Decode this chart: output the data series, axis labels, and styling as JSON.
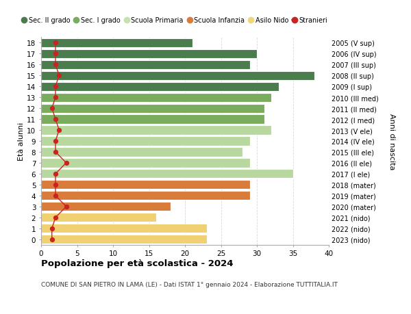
{
  "ages": [
    18,
    17,
    16,
    15,
    14,
    13,
    12,
    11,
    10,
    9,
    8,
    7,
    6,
    5,
    4,
    3,
    2,
    1,
    0
  ],
  "right_labels": [
    "2005 (V sup)",
    "2006 (IV sup)",
    "2007 (III sup)",
    "2008 (II sup)",
    "2009 (I sup)",
    "2010 (III med)",
    "2011 (II med)",
    "2012 (I med)",
    "2013 (V ele)",
    "2014 (IV ele)",
    "2015 (III ele)",
    "2016 (II ele)",
    "2017 (I ele)",
    "2018 (mater)",
    "2019 (mater)",
    "2020 (mater)",
    "2021 (nido)",
    "2022 (nido)",
    "2023 (nido)"
  ],
  "bar_values": [
    21,
    30,
    29,
    38,
    33,
    32,
    31,
    31,
    32,
    29,
    28,
    29,
    35,
    29,
    29,
    18,
    16,
    23,
    23
  ],
  "bar_colors": [
    "#4a7c4e",
    "#4a7c4e",
    "#4a7c4e",
    "#4a7c4e",
    "#4a7c4e",
    "#7aac5e",
    "#7aac5e",
    "#7aac5e",
    "#b8d8a0",
    "#b8d8a0",
    "#b8d8a0",
    "#b8d8a0",
    "#b8d8a0",
    "#d97b3a",
    "#d97b3a",
    "#d97b3a",
    "#f0d070",
    "#f0d070",
    "#f0d070"
  ],
  "stranieri_values": [
    2,
    2,
    2,
    2.5,
    2,
    2,
    1.5,
    2,
    2.5,
    2,
    2,
    3.5,
    2,
    2,
    2,
    3.5,
    2,
    1.5,
    1.5
  ],
  "legend_labels": [
    "Sec. II grado",
    "Sec. I grado",
    "Scuola Primaria",
    "Scuola Infanzia",
    "Asilo Nido",
    "Stranieri"
  ],
  "legend_colors": [
    "#4a7c4e",
    "#7aac5e",
    "#c8e0b0",
    "#d97b3a",
    "#f0d878",
    "#cc2222"
  ],
  "ylabel": "Età alunni",
  "right_ylabel": "Anni di nascita",
  "title": "Popolazione per età scolastica - 2024",
  "subtitle": "COMUNE DI SAN PIETRO IN LAMA (LE) - Dati ISTAT 1° gennaio 2024 - Elaborazione TUTTITALIA.IT",
  "xlim": [
    0,
    40
  ],
  "bar_height": 0.82,
  "background_color": "#ffffff",
  "grid_color": "#d8d8d8"
}
